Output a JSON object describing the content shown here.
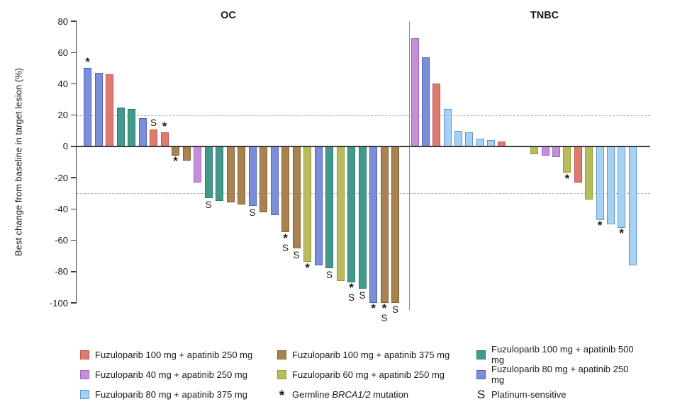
{
  "chart_data": {
    "type": "bar",
    "variant": "waterfall",
    "ylabel": "Best change from baseline in target lesion (%)",
    "ylim": [
      -100,
      80
    ],
    "yticks": [
      80,
      60,
      40,
      20,
      0,
      -20,
      -40,
      -60,
      -80,
      -100
    ],
    "reference_lines": [
      20,
      -30
    ],
    "legend_position": "bottom",
    "marker_codes": {
      "asterisk": "Germline BRCA1/2 mutation",
      "S": "Platinum-sensitive"
    },
    "colors": {
      "red": {
        "fill": "#dd7b6f",
        "stroke": "#c0544a"
      },
      "brown": {
        "fill": "#a8824f",
        "stroke": "#84602f"
      },
      "teal": {
        "fill": "#43998d",
        "stroke": "#2a7b70"
      },
      "orchid": {
        "fill": "#c48fd9",
        "stroke": "#a164c0"
      },
      "yellow": {
        "fill": "#b7bc5c",
        "stroke": "#959e33"
      },
      "royal": {
        "fill": "#7b8ed8",
        "stroke": "#4d5fc7"
      },
      "sky": {
        "fill": "#a6d1f2",
        "stroke": "#5b9bd5"
      }
    },
    "panels": [
      {
        "title": "OC",
        "bars": [
          {
            "v": 50,
            "c": "royal",
            "m": "*"
          },
          {
            "v": 47,
            "c": "royal",
            "m": ""
          },
          {
            "v": 46,
            "c": "red",
            "m": ""
          },
          {
            "v": 25,
            "c": "teal",
            "m": ""
          },
          {
            "v": 24,
            "c": "teal",
            "m": ""
          },
          {
            "v": 18,
            "c": "royal",
            "m": ""
          },
          {
            "v": 11,
            "c": "red",
            "m": "S"
          },
          {
            "v": 9,
            "c": "red",
            "m": "*"
          },
          {
            "v": -6,
            "c": "brown",
            "m": "*"
          },
          {
            "v": -9,
            "c": "brown",
            "m": ""
          },
          {
            "v": -23,
            "c": "orchid",
            "m": ""
          },
          {
            "v": -33,
            "c": "teal",
            "m": "S"
          },
          {
            "v": -35,
            "c": "teal",
            "m": ""
          },
          {
            "v": -36,
            "c": "brown",
            "m": ""
          },
          {
            "v": -37,
            "c": "brown",
            "m": ""
          },
          {
            "v": -38,
            "c": "royal",
            "m": "S"
          },
          {
            "v": -42,
            "c": "brown",
            "m": ""
          },
          {
            "v": -44,
            "c": "royal",
            "m": ""
          },
          {
            "v": -55,
            "c": "brown",
            "m": "*S"
          },
          {
            "v": -65,
            "c": "brown",
            "m": "S"
          },
          {
            "v": -74,
            "c": "yellow",
            "m": "*"
          },
          {
            "v": -76,
            "c": "royal",
            "m": ""
          },
          {
            "v": -78,
            "c": "teal",
            "m": "S"
          },
          {
            "v": -86,
            "c": "yellow",
            "m": ""
          },
          {
            "v": -87,
            "c": "teal",
            "m": "*S"
          },
          {
            "v": -91,
            "c": "teal",
            "m": "S"
          },
          {
            "v": -100,
            "c": "royal",
            "m": "*"
          },
          {
            "v": -100,
            "c": "brown",
            "m": "*S"
          },
          {
            "v": -100,
            "c": "brown",
            "m": "S"
          }
        ]
      },
      {
        "title": "TNBC",
        "bars": [
          {
            "v": 69,
            "c": "orchid",
            "m": ""
          },
          {
            "v": 57,
            "c": "royal",
            "m": ""
          },
          {
            "v": 40,
            "c": "red",
            "m": ""
          },
          {
            "v": 24,
            "c": "sky",
            "m": ""
          },
          {
            "v": 10,
            "c": "sky",
            "m": ""
          },
          {
            "v": 9,
            "c": "sky",
            "m": ""
          },
          {
            "v": 5,
            "c": "sky",
            "m": ""
          },
          {
            "v": 4,
            "c": "sky",
            "m": ""
          },
          {
            "v": 3,
            "c": "red",
            "m": ""
          },
          {
            "v": 0,
            "c": "",
            "m": ""
          },
          {
            "v": 0,
            "c": "",
            "m": ""
          },
          {
            "v": -5,
            "c": "yellow",
            "m": ""
          },
          {
            "v": -6,
            "c": "orchid",
            "m": ""
          },
          {
            "v": -7,
            "c": "orchid",
            "m": ""
          },
          {
            "v": -17,
            "c": "yellow",
            "m": "*"
          },
          {
            "v": -23,
            "c": "red",
            "m": ""
          },
          {
            "v": -34,
            "c": "yellow",
            "m": ""
          },
          {
            "v": -47,
            "c": "sky",
            "m": "*"
          },
          {
            "v": -50,
            "c": "sky",
            "m": ""
          },
          {
            "v": -52,
            "c": "sky",
            "m": "*"
          },
          {
            "v": -76,
            "c": "sky",
            "m": ""
          }
        ]
      }
    ],
    "legend": [
      {
        "type": "swatch",
        "color_key": "red",
        "label": "Fuzuloparib 100 mg + apatinib 250 mg"
      },
      {
        "type": "swatch",
        "color_key": "brown",
        "label": "Fuzuloparib 100 mg + apatinib 375 mg"
      },
      {
        "type": "swatch",
        "color_key": "teal",
        "label": "Fuzuloparib 100 mg + apatinib 500 mg"
      },
      {
        "type": "swatch",
        "color_key": "orchid",
        "label": "Fuzuloparib 40 mg + apatinib 250 mg"
      },
      {
        "type": "swatch",
        "color_key": "yellow",
        "label": "Fuzuloparib 60 mg + apatinib 250 mg"
      },
      {
        "type": "swatch",
        "color_key": "royal",
        "label": "Fuzuloparib 80 mg + apatinib 250 mg"
      },
      {
        "type": "swatch",
        "color_key": "sky",
        "label": "Fuzuloparib 80 mg + apatinib 375 mg"
      },
      {
        "type": "symbol",
        "symbol": "*",
        "label_prefix": "Germline ",
        "label_italic": "BRCA1/2",
        "label_suffix": " mutation"
      },
      {
        "type": "symbol",
        "symbol": "S",
        "label": "Platinum-sensitive"
      }
    ]
  }
}
